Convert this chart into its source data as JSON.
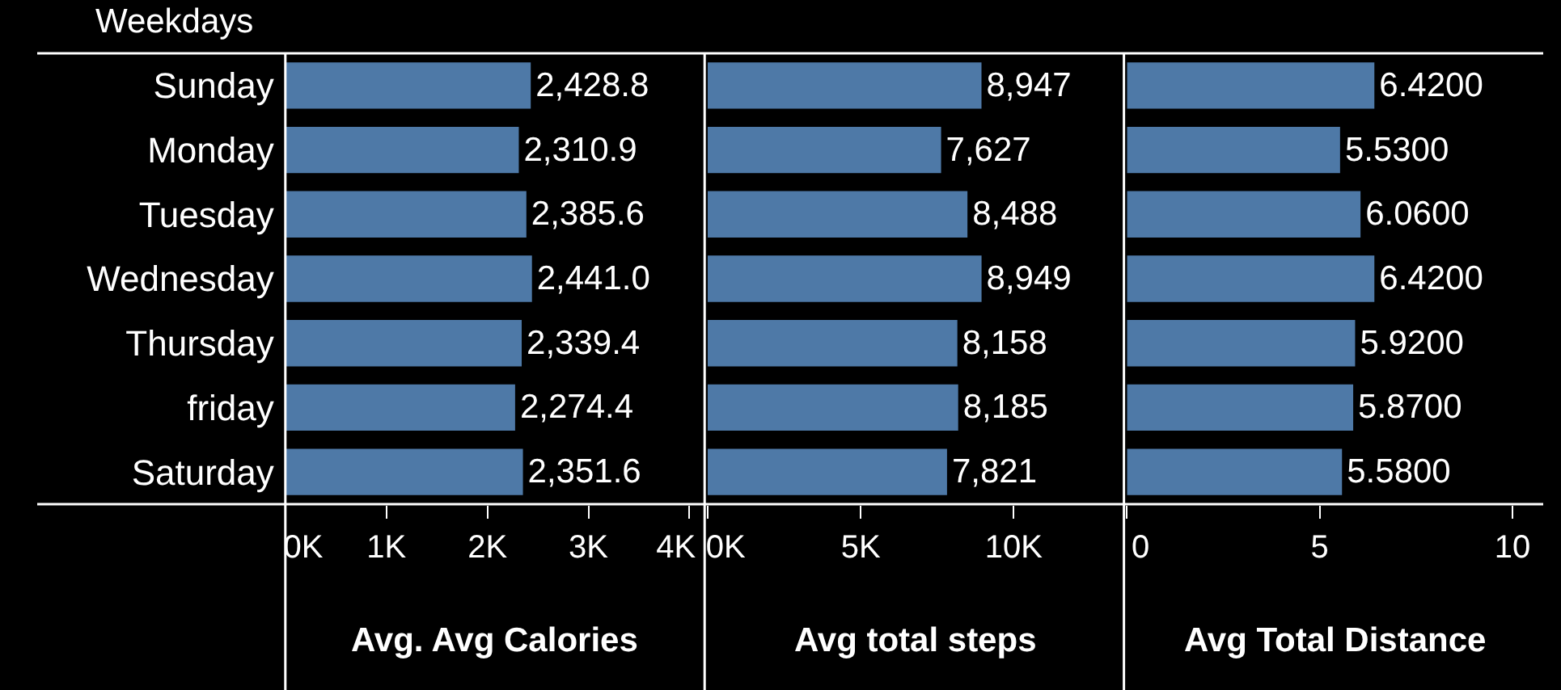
{
  "chart_data": [
    {
      "type": "bar",
      "orientation": "horizontal",
      "ylabel": "Weekdays",
      "xlabel": "Avg. Avg Calories",
      "categories": [
        "Sunday",
        "Monday",
        "Tuesday",
        "Wednesday",
        "Thursday",
        "friday",
        "Saturday"
      ],
      "values": [
        2428.8,
        2310.9,
        2385.6,
        2441.0,
        2339.4,
        2274.4,
        2351.6
      ],
      "value_labels": [
        "2,428.8",
        "2,310.9",
        "2,385.6",
        "2,441.0",
        "2,339.4",
        "2,274.4",
        "2,351.6"
      ],
      "color": "#4e79a7",
      "xlim": [
        0,
        4150
      ],
      "xticks": [
        {
          "value": 0,
          "label": "0K"
        },
        {
          "value": 1000,
          "label": "1K"
        },
        {
          "value": 2000,
          "label": "2K"
        },
        {
          "value": 3000,
          "label": "3K"
        },
        {
          "value": 4000,
          "label": "4K"
        }
      ]
    },
    {
      "type": "bar",
      "orientation": "horizontal",
      "xlabel": "Avg total steps",
      "categories": [
        "Sunday",
        "Monday",
        "Tuesday",
        "Wednesday",
        "Thursday",
        "friday",
        "Saturday"
      ],
      "values": [
        8947,
        7627,
        8488,
        8949,
        8158,
        8185,
        7821
      ],
      "value_labels": [
        "8,947",
        "7,627",
        "8,488",
        "8,949",
        "8,158",
        "8,185",
        "7,821"
      ],
      "color": "#4e79a7",
      "xlim": [
        0,
        13600
      ],
      "xticks": [
        {
          "value": 0,
          "label": "0K"
        },
        {
          "value": 5000,
          "label": "5K"
        },
        {
          "value": 10000,
          "label": "10K"
        }
      ],
      "tick_labels": "x"
    },
    {
      "type": "bar",
      "orientation": "horizontal",
      "xlabel": "Avg Total Distance",
      "categories": [
        "Sunday",
        "Monday",
        "Tuesday",
        "Wednesday",
        "Thursday",
        "friday",
        "Saturday"
      ],
      "values": [
        6.42,
        5.53,
        6.06,
        6.42,
        5.92,
        5.87,
        5.58
      ],
      "value_labels": [
        "6.4200",
        "5.5300",
        "6.0600",
        "6.4200",
        "5.9200",
        "5.8700",
        "5.5800"
      ],
      "color": "#4e79a7",
      "xlim": [
        0,
        10.8
      ],
      "xticks": [
        0,
        5,
        10
      ],
      "tick_labels": "x"
    }
  ]
}
